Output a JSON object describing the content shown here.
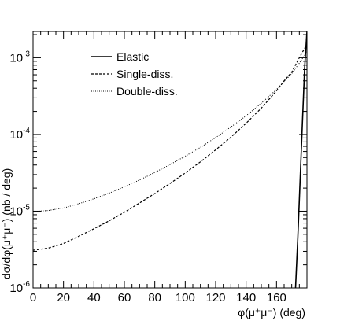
{
  "chart_data": {
    "type": "line",
    "title": "",
    "xlabel": "φ(μ⁺μ⁻) (deg)",
    "ylabel": "dσ/dφ(μ⁺μ⁻) (nb / deg)",
    "xlim": [
      0,
      180
    ],
    "ylim": [
      1e-06,
      0.0022
    ],
    "yscale": "log",
    "grid": false,
    "legend_position": "top-center",
    "x_ticks": [
      "0",
      "20",
      "40",
      "60",
      "80",
      "100",
      "120",
      "140",
      "160"
    ],
    "y_ticks": [
      {
        "base": "10",
        "exp": "-6",
        "value": 1e-06
      },
      {
        "base": "10",
        "exp": "-5",
        "value": 1e-05
      },
      {
        "base": "10",
        "exp": "-4",
        "value": 0.0001
      },
      {
        "base": "10",
        "exp": "-3",
        "value": 0.001
      }
    ],
    "series": [
      {
        "name": "Elastic",
        "style": "solid",
        "x": [
          172.5,
          174,
          175.5,
          177,
          178.5,
          180
        ],
        "y": [
          1e-06,
          4.5e-06,
          2.5e-05,
          0.00014,
          0.00075,
          0.0022
        ]
      },
      {
        "name": "Single-diss.",
        "style": "dashed",
        "x": [
          0,
          10,
          20,
          30,
          40,
          50,
          60,
          70,
          80,
          90,
          100,
          110,
          120,
          130,
          140,
          150,
          160,
          165,
          170,
          175,
          180
        ],
        "y": [
          3.1e-06,
          3.3e-06,
          3.8e-06,
          4.7e-06,
          5.9e-06,
          7.5e-06,
          9.7e-06,
          1.28e-05,
          1.7e-05,
          2.3e-05,
          3.15e-05,
          4.4e-05,
          6.3e-05,
          9.2e-05,
          0.00014,
          0.00022,
          0.00037,
          0.0005,
          0.00065,
          0.001,
          0.0015
        ]
      },
      {
        "name": "Double-diss.",
        "style": "dotted",
        "x": [
          0,
          10,
          20,
          30,
          40,
          50,
          60,
          70,
          80,
          90,
          100,
          110,
          120,
          130,
          140,
          150,
          160,
          165,
          170,
          175,
          180
        ],
        "y": [
          9.9e-06,
          1.02e-05,
          1.1e-05,
          1.25e-05,
          1.45e-05,
          1.72e-05,
          2.08e-05,
          2.55e-05,
          3.2e-05,
          4.05e-05,
          5.2e-05,
          6.8e-05,
          9.1e-05,
          0.000125,
          0.000175,
          0.000255,
          0.000385,
          0.00049,
          0.00062,
          0.00085,
          0.0012
        ]
      }
    ]
  }
}
